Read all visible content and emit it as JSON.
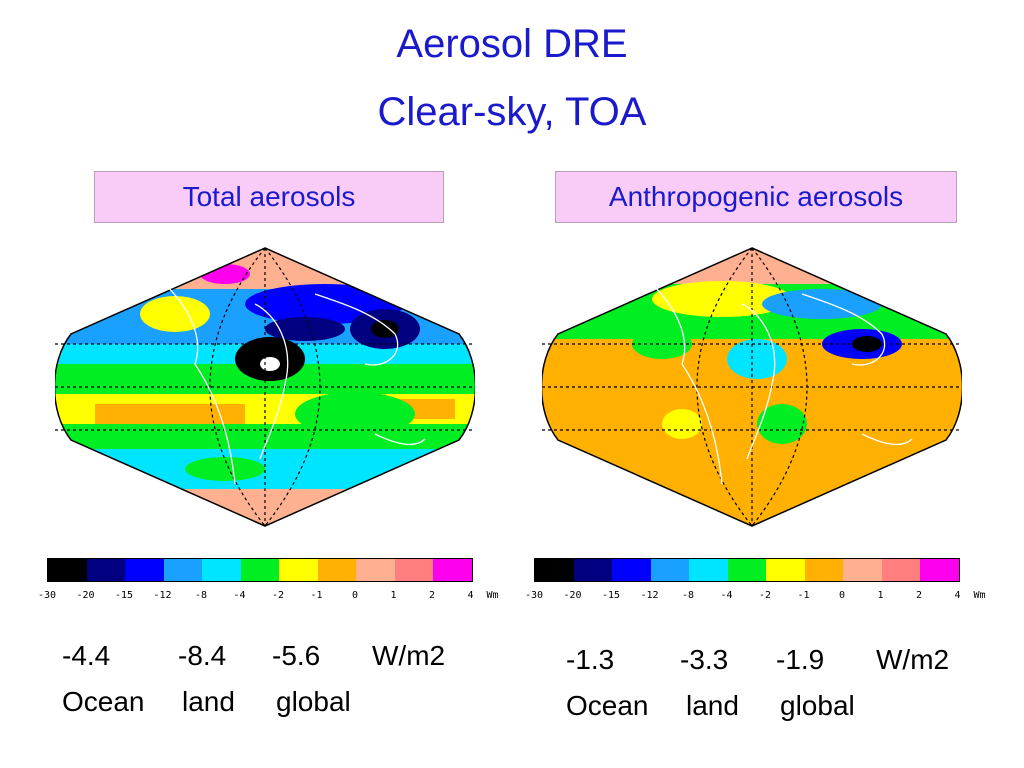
{
  "title_line1": "Aerosol DRE",
  "title_line2": "Clear-sky, TOA",
  "colorbar": {
    "colors": [
      "#000000",
      "#000080",
      "#0000ff",
      "#1aa0ff",
      "#00e5ff",
      "#00ee22",
      "#ffff00",
      "#ffb000",
      "#ffb090",
      "#ff7f7f",
      "#ff00ee"
    ],
    "ticks": [
      "-30",
      "-20",
      "-15",
      "-12",
      "-8",
      "-4",
      "-2",
      "-1",
      "0",
      "1",
      "2",
      "4"
    ],
    "units_label": "Wm"
  },
  "panels": [
    {
      "label": "Total aerosols",
      "values": {
        "ocean": "-4.4",
        "land": "-8.4",
        "global": "-5.6",
        "units": "W/m2"
      },
      "headers": {
        "ocean": "Ocean",
        "land": "land",
        "global": "global"
      }
    },
    {
      "label": "Anthropogenic aerosols",
      "values": {
        "ocean": "-1.3",
        "land": "-3.3",
        "global": "-1.9",
        "units": "W/m2"
      },
      "headers": {
        "ocean": "Ocean",
        "land": "land",
        "global": "global"
      }
    }
  ]
}
